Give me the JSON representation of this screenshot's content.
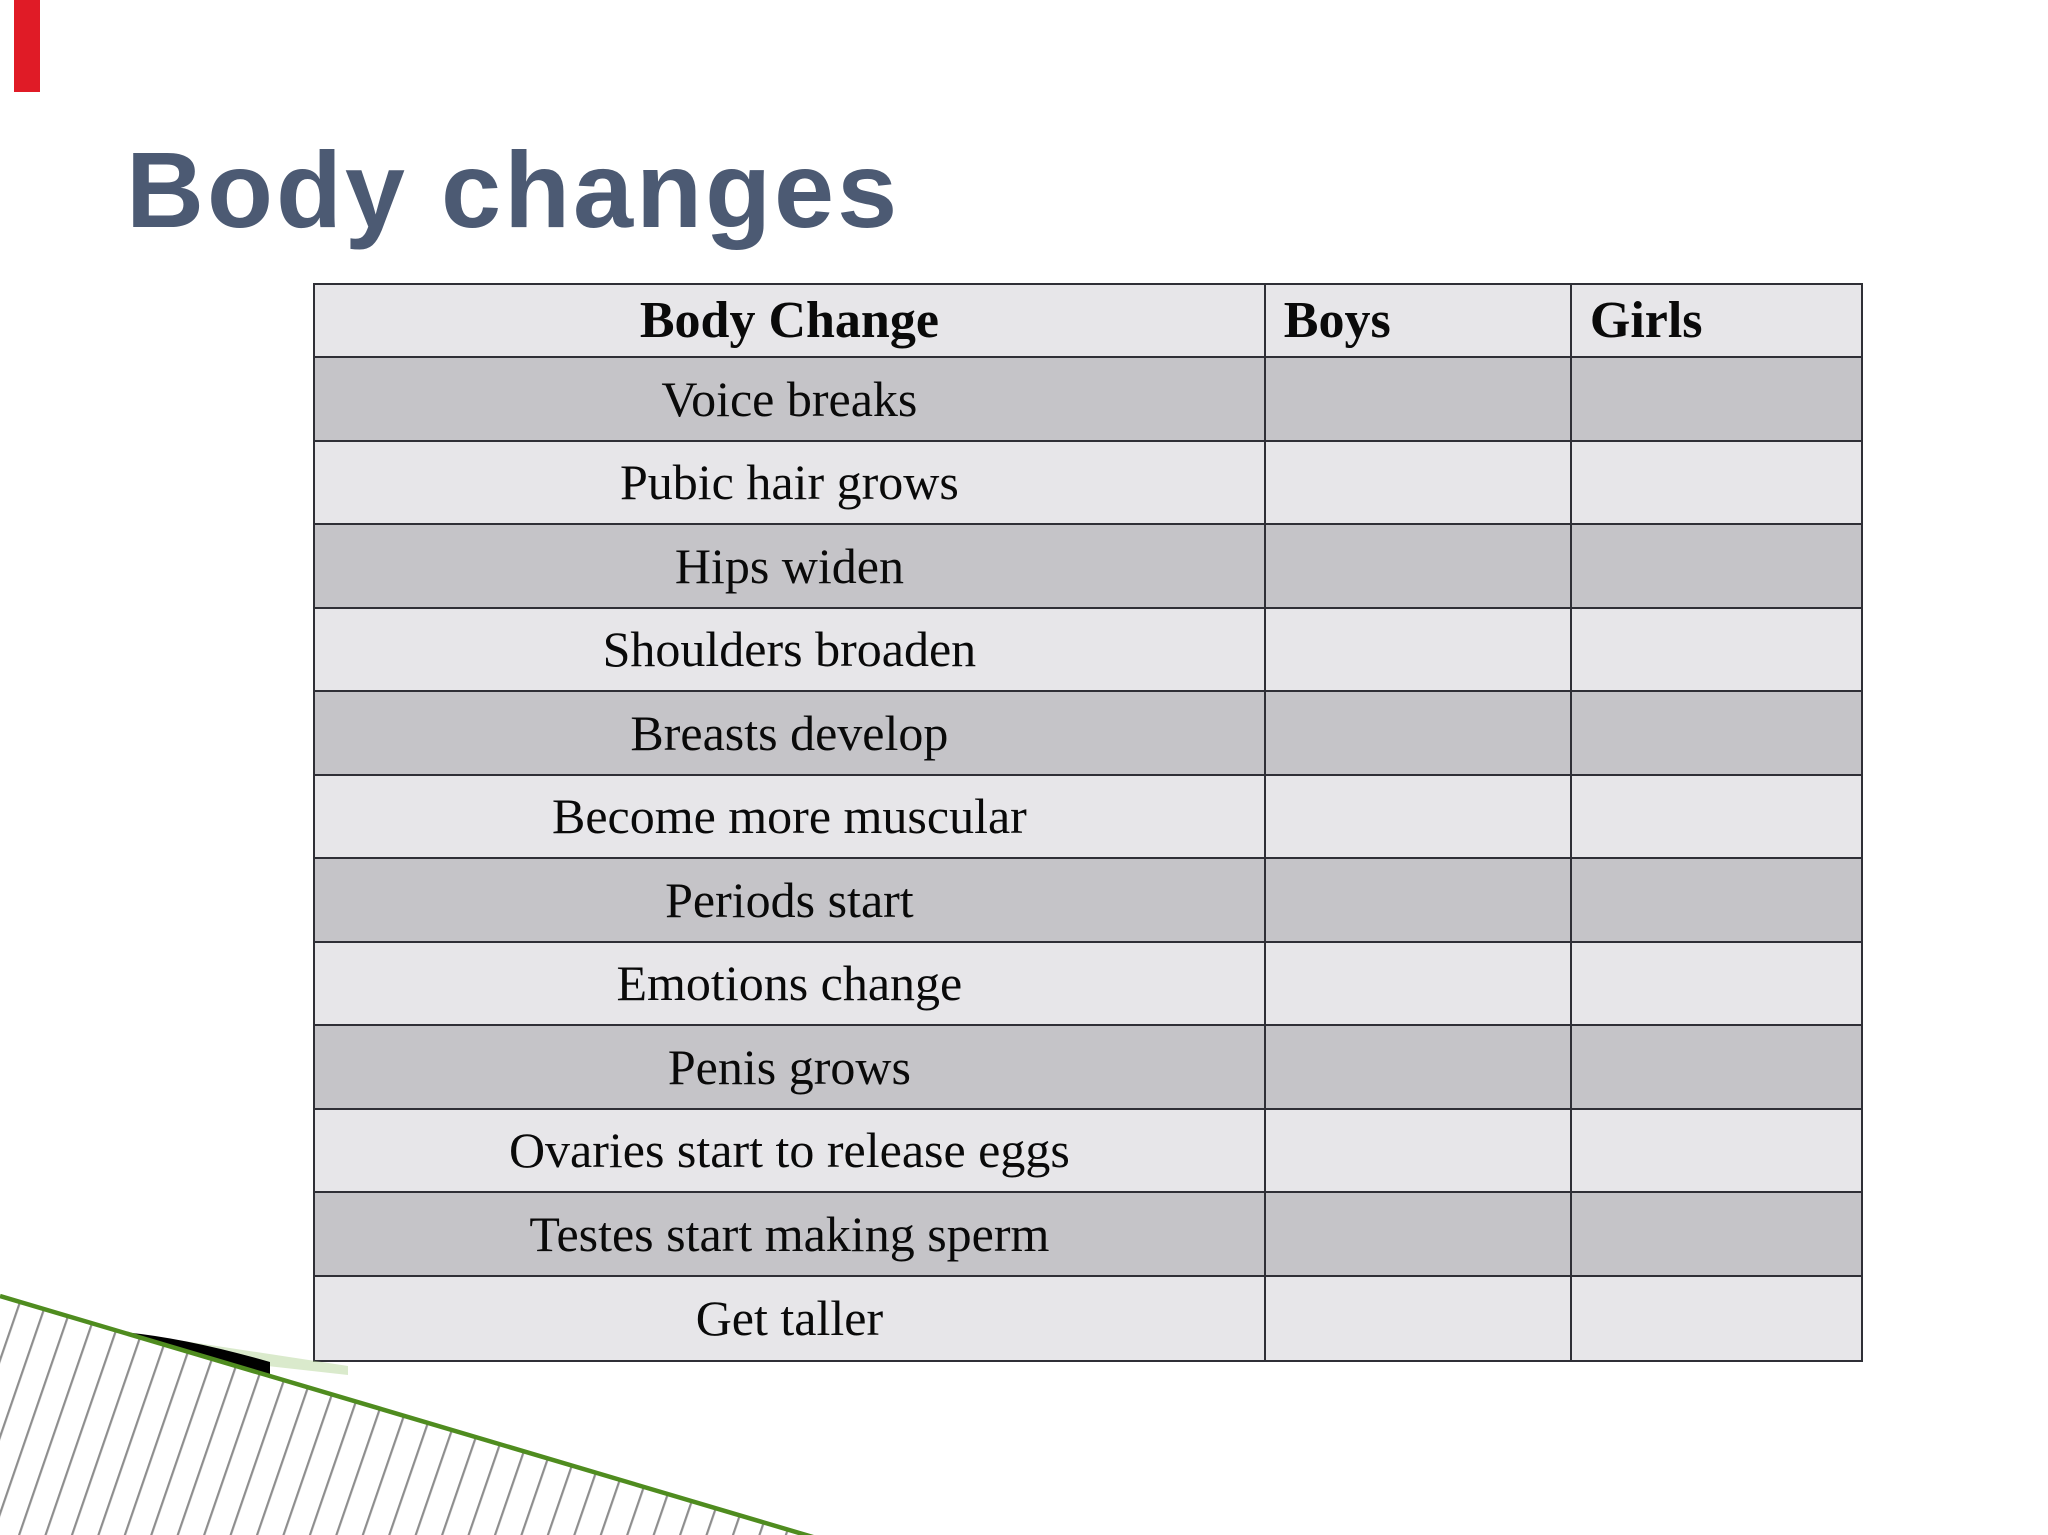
{
  "slide": {
    "title": "Body changes",
    "table": {
      "headers": [
        "Body Change",
        "Boys",
        "Girls"
      ],
      "rows": [
        {
          "cells": [
            "Voice breaks",
            "",
            ""
          ]
        },
        {
          "cells": [
            "Pubic hair grows",
            "",
            ""
          ]
        },
        {
          "cells": [
            "Hips widen",
            "",
            ""
          ]
        },
        {
          "cells": [
            "Shoulders broaden",
            "",
            ""
          ]
        },
        {
          "cells": [
            "Breasts develop",
            "",
            ""
          ]
        },
        {
          "cells": [
            "Become more muscular",
            "",
            ""
          ]
        },
        {
          "cells": [
            "Periods start",
            "",
            ""
          ]
        },
        {
          "cells": [
            "Emotions change",
            "",
            ""
          ]
        },
        {
          "cells": [
            "Penis grows",
            "",
            ""
          ]
        },
        {
          "cells": [
            "Ovaries start to release eggs",
            "",
            ""
          ]
        },
        {
          "cells": [
            "Testes start making sperm",
            "",
            ""
          ]
        },
        {
          "cells": [
            "Get taller",
            "",
            ""
          ]
        }
      ]
    },
    "colors": {
      "accent_red": "#e01b26",
      "title": "#4c5a73",
      "row_light": "#e7e6e9",
      "row_dark": "#c5c4c8",
      "table_border": "#2f2f36",
      "hatch_gray": "#8e8e8e",
      "diagonal_green": "#4f8c1f",
      "swoosh_black": "#000000",
      "swoosh_tint": "#b5d69a"
    }
  }
}
